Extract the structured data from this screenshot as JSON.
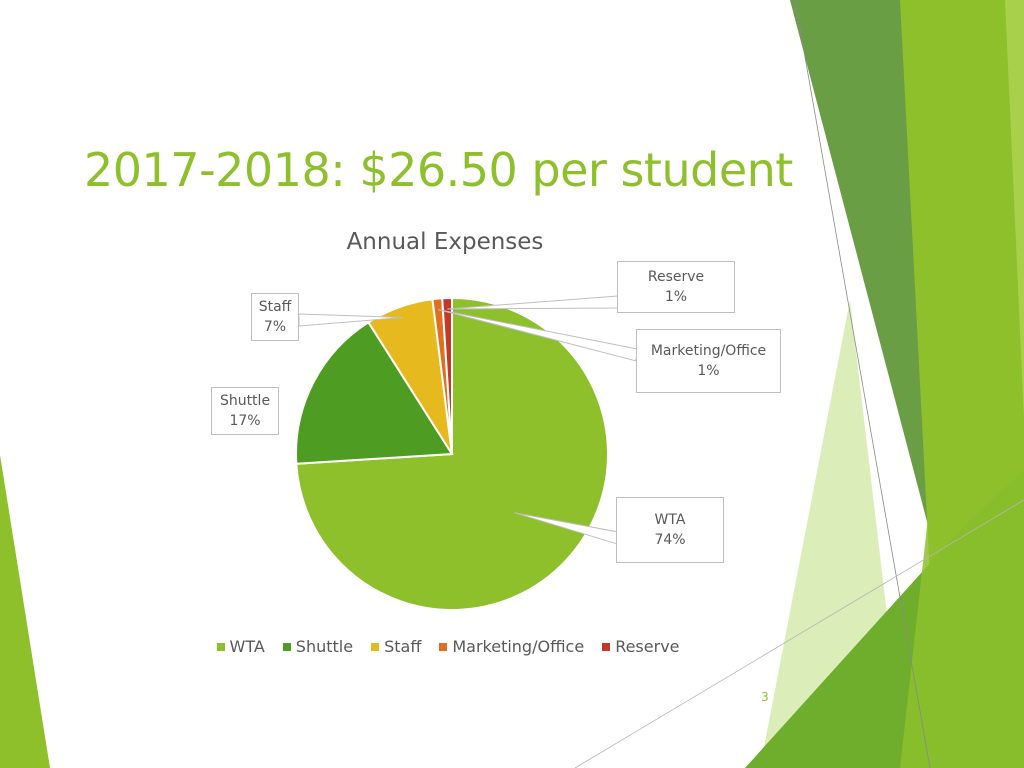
{
  "slide": {
    "title": "2017-2018:  $26.50 per student",
    "page_number": "3"
  },
  "colors": {
    "accent": "#8dc02b",
    "WTA": "#8dc02b",
    "Shuttle": "#4e9d22",
    "Staff": "#e6b91e",
    "Marketing/Office": "#e07020",
    "Reserve": "#c0392b"
  },
  "chart_data": {
    "type": "pie",
    "title": "Annual Expenses",
    "categories": [
      "WTA",
      "Shuttle",
      "Staff",
      "Marketing/Office",
      "Reserve"
    ],
    "values": [
      74,
      17,
      7,
      1,
      1
    ],
    "value_labels": [
      "74%",
      "17%",
      "7%",
      "1%",
      "1%"
    ],
    "legend_position": "bottom"
  }
}
